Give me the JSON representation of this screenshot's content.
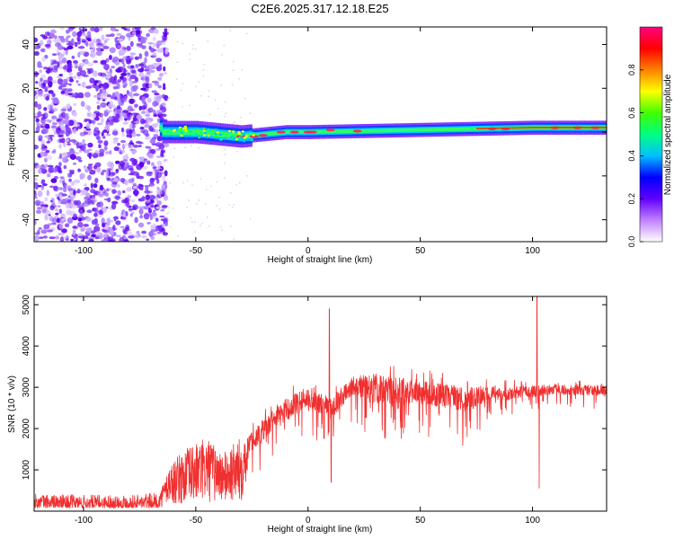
{
  "title": "C2E6.2025.317.12.18.E25",
  "chart_data": [
    {
      "type": "heatmap",
      "xlabel": "Height of straight line (km)",
      "ylabel": "Frequency (Hz)",
      "xlim": [
        -122,
        133
      ],
      "ylim": [
        -50,
        48
      ],
      "xticks": [
        -100,
        -50,
        0,
        50,
        100
      ],
      "yticks": [
        -40,
        -20,
        0,
        20,
        40
      ],
      "colorbar": {
        "label": "Normalized spectral amplitude",
        "range": [
          0,
          1
        ],
        "ticks": [
          0.0,
          0.2,
          0.4,
          0.6,
          0.8
        ],
        "colors": [
          "#ffffff",
          "#c080ff",
          "#6000ff",
          "#0000ff",
          "#00c0ff",
          "#00ff80",
          "#40ff00",
          "#ffff00",
          "#ff8000",
          "#ff0000",
          "#ff0080"
        ]
      },
      "features": {
        "noise_region_x": [
          -122,
          -65
        ],
        "signal_band_center_hz": [
          {
            "x": -65,
            "y": 0
          },
          {
            "x": -50,
            "y": 0
          },
          {
            "x": -40,
            "y": -1
          },
          {
            "x": -30,
            "y": -2
          },
          {
            "x": -20,
            "y": -1
          },
          {
            "x": -10,
            "y": 0
          },
          {
            "x": 0,
            "y": 0
          },
          {
            "x": 25,
            "y": 0.5
          },
          {
            "x": 50,
            "y": 1
          },
          {
            "x": 75,
            "y": 1.5
          },
          {
            "x": 100,
            "y": 2
          },
          {
            "x": 133,
            "y": 2
          }
        ]
      }
    },
    {
      "type": "line",
      "xlabel": "Height of straight line (km)",
      "ylabel": "SNR (10 * v/v)",
      "xlim": [
        -122,
        133
      ],
      "ylim": [
        0,
        5200
      ],
      "xticks": [
        -100,
        -50,
        0,
        50,
        100
      ],
      "yticks": [
        1000,
        2000,
        3000,
        4000,
        5000
      ],
      "color": "#f03030",
      "envelope": [
        {
          "x": -122,
          "lo": 80,
          "hi": 420
        },
        {
          "x": -100,
          "lo": 80,
          "hi": 400
        },
        {
          "x": -80,
          "lo": 80,
          "hi": 400
        },
        {
          "x": -66,
          "lo": 80,
          "hi": 450
        },
        {
          "x": -62,
          "lo": 150,
          "hi": 1100
        },
        {
          "x": -55,
          "lo": 150,
          "hi": 1500
        },
        {
          "x": -45,
          "lo": 200,
          "hi": 1800
        },
        {
          "x": -38,
          "lo": 200,
          "hi": 1400
        },
        {
          "x": -30,
          "lo": 150,
          "hi": 1800
        },
        {
          "x": -27,
          "lo": 800,
          "hi": 2000
        },
        {
          "x": -20,
          "lo": 1000,
          "hi": 2500
        },
        {
          "x": -10,
          "lo": 1400,
          "hi": 3000
        },
        {
          "x": 0,
          "lo": 1800,
          "hi": 3300
        },
        {
          "x": 10,
          "lo": 1500,
          "hi": 3000
        },
        {
          "x": 20,
          "lo": 2200,
          "hi": 3500
        },
        {
          "x": 30,
          "lo": 1600,
          "hi": 3700
        },
        {
          "x": 45,
          "lo": 1800,
          "hi": 3500
        },
        {
          "x": 60,
          "lo": 1700,
          "hi": 3400
        },
        {
          "x": 70,
          "lo": 1500,
          "hi": 3300
        },
        {
          "x": 80,
          "lo": 2200,
          "hi": 3200
        },
        {
          "x": 95,
          "lo": 2300,
          "hi": 3200
        },
        {
          "x": 110,
          "lo": 2500,
          "hi": 3200
        },
        {
          "x": 133,
          "lo": 2400,
          "hi": 3200
        }
      ],
      "spikes": [
        {
          "x": 9.5,
          "y": 4900
        },
        {
          "x": 10.3,
          "y": 700
        },
        {
          "x": 102,
          "y": 5200
        },
        {
          "x": 103,
          "y": 550
        }
      ]
    }
  ]
}
